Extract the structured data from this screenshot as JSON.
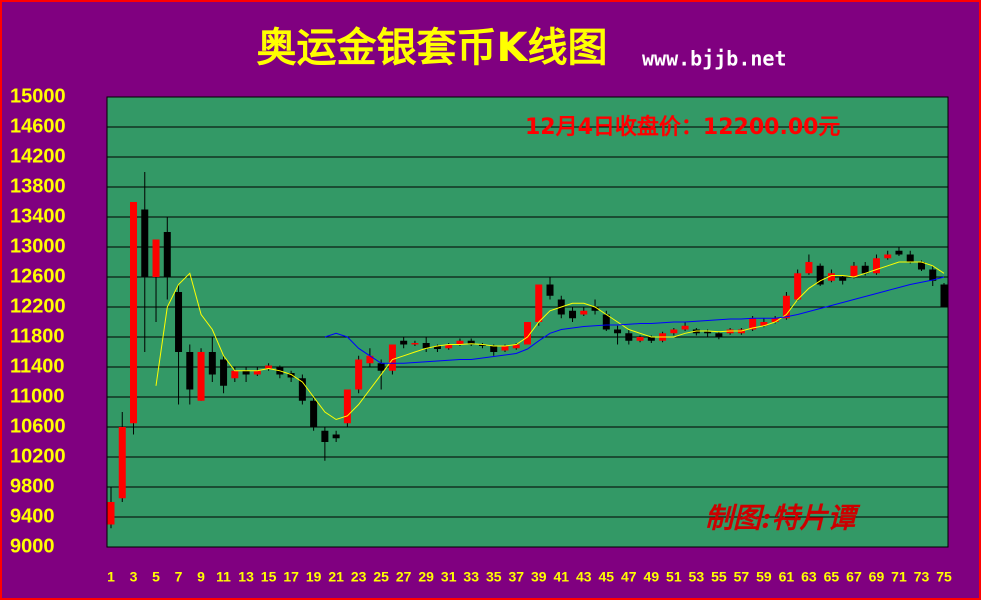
{
  "chart_data": {
    "type": "candlestick",
    "title": "奥运金银套币K线图",
    "subtitle": "www.bjjb.net",
    "annotations": [
      "12月4日收盘价：12200.00元",
      "制图:特片谭"
    ],
    "categories": [
      "1",
      null,
      "3",
      null,
      "5",
      null,
      "7",
      null,
      "9",
      null,
      "11",
      null,
      "13",
      null,
      "15",
      null,
      "17",
      null,
      "19",
      null,
      "21",
      null,
      "23",
      null,
      "25",
      null,
      "27",
      null,
      "29",
      null,
      "31",
      null,
      "33",
      null,
      "35",
      null,
      "37",
      null,
      "39",
      null,
      "41",
      null,
      "43",
      null,
      "45",
      null,
      "47",
      null,
      "49",
      null,
      "51",
      null,
      "53",
      null,
      "55",
      null,
      "57",
      null,
      "59",
      null,
      "61",
      null,
      "63",
      null,
      "65",
      null,
      "67",
      null,
      "69",
      null,
      "71",
      null,
      "73",
      null,
      "75"
    ],
    "open": [
      9300,
      9650,
      10650,
      13500,
      12600,
      13200,
      12400,
      11600,
      10950,
      11600,
      11500,
      11250,
      11350,
      11300,
      11380,
      11400,
      11320,
      11250,
      10950,
      10550,
      10500,
      10650,
      11100,
      11450,
      11450,
      11350,
      11750,
      11700,
      11720,
      11680,
      11650,
      11700,
      11750,
      11700,
      11680,
      11620,
      11650,
      11700,
      12000,
      12500,
      12300,
      12150,
      12100,
      12200,
      12100,
      11900,
      11850,
      11750,
      11800,
      11750,
      11850,
      11900,
      11900,
      11870,
      11850,
      11850,
      11850,
      11900,
      11950,
      12000,
      12050,
      12300,
      12650,
      12750,
      12550,
      12600,
      12600,
      12750,
      12650,
      12850,
      12950,
      12900,
      12800,
      12700,
      12500
    ],
    "high": [
      9800,
      10800,
      13600,
      14000,
      13100,
      13400,
      12500,
      11700,
      11650,
      11800,
      11550,
      11400,
      11400,
      11400,
      11450,
      11420,
      11350,
      11300,
      11000,
      10600,
      10550,
      11100,
      11550,
      11650,
      11500,
      11700,
      11800,
      11750,
      11800,
      11700,
      11720,
      11780,
      11780,
      11720,
      11700,
      11700,
      11720,
      12000,
      12500,
      12600,
      12350,
      12200,
      12200,
      12300,
      12150,
      11950,
      11900,
      11820,
      11820,
      11870,
      11920,
      12000,
      11920,
      11900,
      11870,
      11920,
      11920,
      12080,
      12050,
      12080,
      12400,
      12700,
      12900,
      12780,
      12700,
      12620,
      12800,
      12800,
      12900,
      12950,
      13000,
      12950,
      12820,
      12750,
      12520
    ],
    "low": [
      9250,
      9600,
      10500,
      11600,
      12000,
      12300,
      10900,
      10900,
      10950,
      11200,
      11050,
      11200,
      11200,
      11280,
      11350,
      11250,
      11200,
      10900,
      10550,
      10150,
      10400,
      10600,
      11050,
      11400,
      11100,
      11300,
      11650,
      11680,
      11600,
      11600,
      11630,
      11680,
      11680,
      11650,
      11550,
      11600,
      11630,
      11700,
      11950,
      12300,
      12050,
      12000,
      12080,
      12100,
      11880,
      11700,
      11700,
      11730,
      11720,
      11730,
      11820,
      11880,
      11820,
      11800,
      11770,
      11830,
      11830,
      11880,
      11930,
      11980,
      12030,
      12280,
      12630,
      12480,
      12530,
      12500,
      12580,
      12620,
      12630,
      12830,
      12880,
      12780,
      12680,
      12480,
      12200
    ],
    "close": [
      9600,
      10600,
      13600,
      12600,
      13100,
      12600,
      11600,
      11100,
      11600,
      11300,
      11150,
      11350,
      11300,
      11350,
      11420,
      11300,
      11260,
      10950,
      10600,
      10400,
      10450,
      11100,
      11500,
      11550,
      11350,
      11700,
      11700,
      11720,
      11650,
      11640,
      11700,
      11750,
      11700,
      11680,
      11600,
      11680,
      11700,
      12000,
      12500,
      12350,
      12100,
      12050,
      12150,
      12150,
      11900,
      11850,
      11750,
      11800,
      11750,
      11850,
      11900,
      11950,
      11850,
      11850,
      11800,
      11900,
      11900,
      12050,
      12000,
      12050,
      12350,
      12650,
      12800,
      12500,
      12650,
      12550,
      12750,
      12650,
      12850,
      12900,
      12900,
      12800,
      12700,
      12550,
      12200
    ],
    "up_color": "#ff0000",
    "down_color": "#000000",
    "lines": [
      {
        "color": "#ffff00",
        "values": [
          null,
          null,
          null,
          null,
          11150,
          12200,
          12500,
          12650,
          12100,
          11900,
          11550,
          11350,
          11350,
          11350,
          11380,
          11350,
          11300,
          11200,
          11000,
          10800,
          10700,
          10750,
          10900,
          11100,
          11300,
          11500,
          11550,
          11600,
          11650,
          11680,
          11700,
          11700,
          11710,
          11700,
          11680,
          11680,
          11700,
          11800,
          12000,
          12150,
          12200,
          12250,
          12250,
          12200,
          12100,
          12000,
          11900,
          11850,
          11800,
          11800,
          11800,
          11850,
          11880,
          11880,
          11870,
          11880,
          11880,
          11920,
          11950,
          12000,
          12100,
          12300,
          12450,
          12550,
          12620,
          12620,
          12600,
          12650,
          12700,
          12750,
          12800,
          12800,
          12800,
          12750,
          12650
        ]
      },
      {
        "color": "#0000ff",
        "values": [
          null,
          null,
          null,
          null,
          null,
          null,
          null,
          null,
          null,
          null,
          null,
          null,
          null,
          null,
          null,
          null,
          null,
          null,
          null,
          11800,
          11850,
          11800,
          11650,
          11550,
          11450,
          11450,
          11450,
          11460,
          11470,
          11480,
          11490,
          11500,
          11500,
          11520,
          11540,
          11560,
          11580,
          11640,
          11750,
          11850,
          11900,
          11920,
          11940,
          11950,
          11960,
          11960,
          11970,
          11980,
          11980,
          11990,
          12000,
          12000,
          12010,
          12020,
          12030,
          12040,
          12040,
          12050,
          12050,
          12050,
          12070,
          12100,
          12140,
          12180,
          12220,
          12260,
          12300,
          12340,
          12380,
          12420,
          12460,
          12500,
          12530,
          12560,
          12600
        ]
      }
    ],
    "ylim": [
      9000,
      15000
    ],
    "yticks": [
      9000,
      9400,
      9800,
      10200,
      10600,
      11000,
      11400,
      11800,
      12200,
      12600,
      13000,
      13400,
      13800,
      14200,
      14600,
      15000
    ],
    "grid": true
  }
}
